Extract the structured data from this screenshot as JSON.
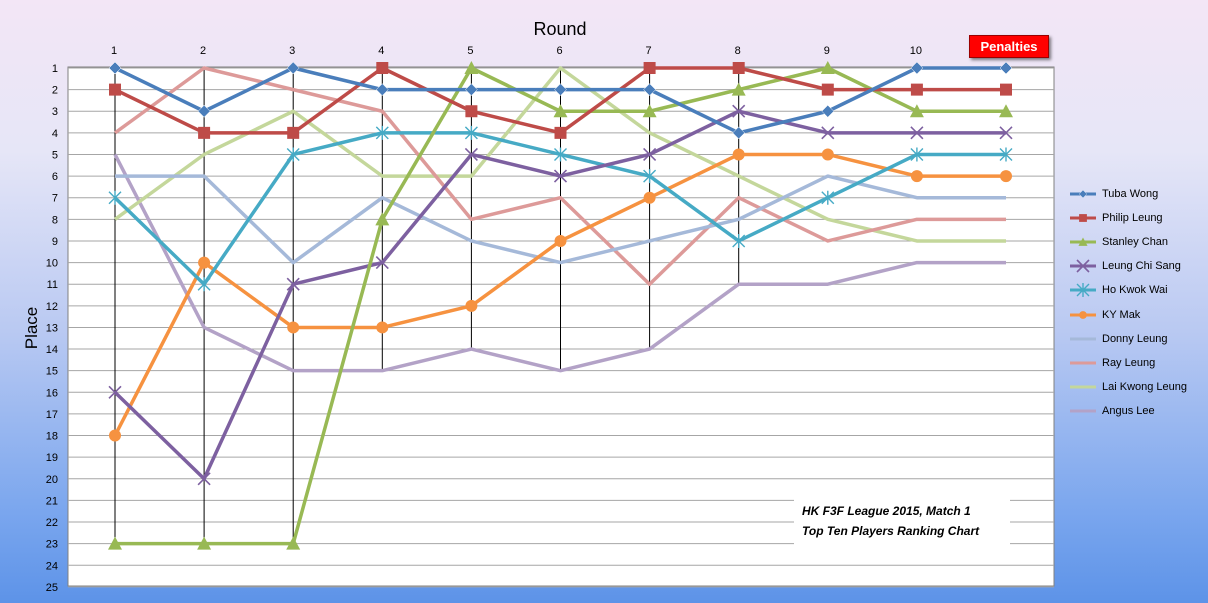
{
  "chart_data": {
    "type": "line",
    "title": "HK F3F League 2015, Match 1 Top Ten Players Ranking Chart",
    "xlabel": "Round",
    "ylabel": "Place",
    "x": [
      1,
      2,
      3,
      4,
      5,
      6,
      7,
      8,
      9,
      10,
      "Penalties"
    ],
    "x_ticks": [
      "1",
      "2",
      "3",
      "4",
      "5",
      "6",
      "7",
      "8",
      "9",
      "10"
    ],
    "y_ticks": [
      "1",
      "2",
      "3",
      "4",
      "5",
      "6",
      "7",
      "8",
      "9",
      "10",
      "11",
      "12",
      "13",
      "14",
      "15",
      "16",
      "17",
      "18",
      "19",
      "20",
      "21",
      "22",
      "23",
      "24",
      "25"
    ],
    "ylim": [
      1,
      25
    ],
    "y_reversed": true,
    "grid": true,
    "legend_position": "right",
    "series": [
      {
        "name": "Tuba Wong",
        "color": "#4a7ebb",
        "marker": "diamond",
        "values": [
          1,
          3,
          1,
          2,
          2,
          2,
          2,
          4,
          3,
          1,
          1
        ]
      },
      {
        "name": "Philip Leung",
        "color": "#be4b48",
        "marker": "square",
        "values": [
          2,
          4,
          4,
          1,
          3,
          4,
          1,
          1,
          2,
          2,
          2
        ]
      },
      {
        "name": "Stanley Chan",
        "color": "#98b954",
        "marker": "triangle",
        "values": [
          23,
          23,
          23,
          8,
          1,
          3,
          3,
          2,
          1,
          3,
          3
        ]
      },
      {
        "name": "Leung Chi Sang",
        "color": "#7d60a0",
        "marker": "x",
        "values": [
          16,
          20,
          11,
          10,
          5,
          6,
          5,
          3,
          4,
          4,
          4
        ]
      },
      {
        "name": "Ho Kwok Wai",
        "color": "#46aac5",
        "marker": "star",
        "values": [
          7,
          11,
          5,
          4,
          4,
          5,
          6,
          9,
          7,
          5,
          5
        ]
      },
      {
        "name": "KY Mak",
        "color": "#f69240",
        "marker": "circle",
        "values": [
          18,
          10,
          13,
          13,
          12,
          9,
          7,
          5,
          5,
          6,
          6
        ]
      },
      {
        "name": "Donny Leung",
        "color": "#a5b9d9",
        "marker": "none",
        "values": [
          6,
          6,
          10,
          7,
          9,
          10,
          9,
          8,
          6,
          7,
          7
        ]
      },
      {
        "name": "Ray Leung",
        "color": "#dd9a99",
        "marker": "none",
        "values": [
          4,
          1,
          2,
          3,
          8,
          7,
          11,
          7,
          9,
          8,
          8
        ]
      },
      {
        "name": "Lai Kwong Leung",
        "color": "#c4d79b",
        "marker": "none",
        "values": [
          8,
          5,
          3,
          6,
          6,
          1,
          4,
          6,
          8,
          9,
          9
        ]
      },
      {
        "name": "Angus Lee",
        "color": "#b3a2c7",
        "marker": "none",
        "values": [
          5,
          13,
          15,
          15,
          14,
          15,
          14,
          11,
          11,
          10,
          10
        ]
      }
    ]
  },
  "header": {
    "round_label": "Round",
    "penalties_label": "Penalties"
  },
  "y_axis": {
    "label": "Place"
  },
  "annotation": {
    "line1": "HK F3F League 2015, Match 1",
    "line2": "Top Ten Players Ranking Chart"
  }
}
